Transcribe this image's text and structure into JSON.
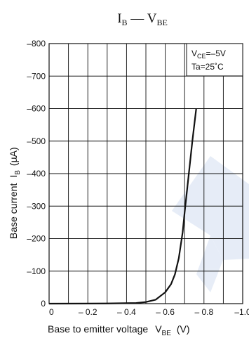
{
  "chart_data": {
    "type": "line",
    "title": {
      "main_a": "I",
      "sub_a": "B",
      "sep": " — ",
      "main_b": "V",
      "sub_b": "BE"
    },
    "xlabel": {
      "text": "Base to emitter voltage",
      "sym": "V",
      "sym_sub": "BE",
      "unit": "(V)"
    },
    "ylabel": {
      "text": "Base current",
      "sym": "I",
      "sym_sub": "B",
      "unit": "(µA)"
    },
    "xlim": [
      0,
      -1.0
    ],
    "ylim": [
      0,
      -800
    ],
    "x_ticks": [
      "0",
      "– 0.2",
      "– 0.4",
      "– 0.6",
      "– 0.8",
      "–1.0"
    ],
    "y_ticks": [
      "0",
      "–100",
      "–200",
      "–300",
      "–400",
      "–500",
      "–600",
      "–700",
      "–800"
    ],
    "grid": true,
    "conditions": {
      "vce_sym": "V",
      "vce_sub": "CE",
      "vce_val": "=–5V",
      "ta": "Ta=25˚C"
    },
    "series": [
      {
        "x": [
          0,
          -0.3,
          -0.45,
          -0.5,
          -0.55,
          -0.6,
          -0.63,
          -0.65,
          -0.67,
          -0.69,
          -0.7,
          -0.72,
          -0.74,
          -0.76
        ],
        "y": [
          0,
          -0.5,
          -2,
          -5,
          -12,
          -35,
          -60,
          -90,
          -140,
          -220,
          -280,
          -390,
          -500,
          -600
        ]
      }
    ]
  }
}
